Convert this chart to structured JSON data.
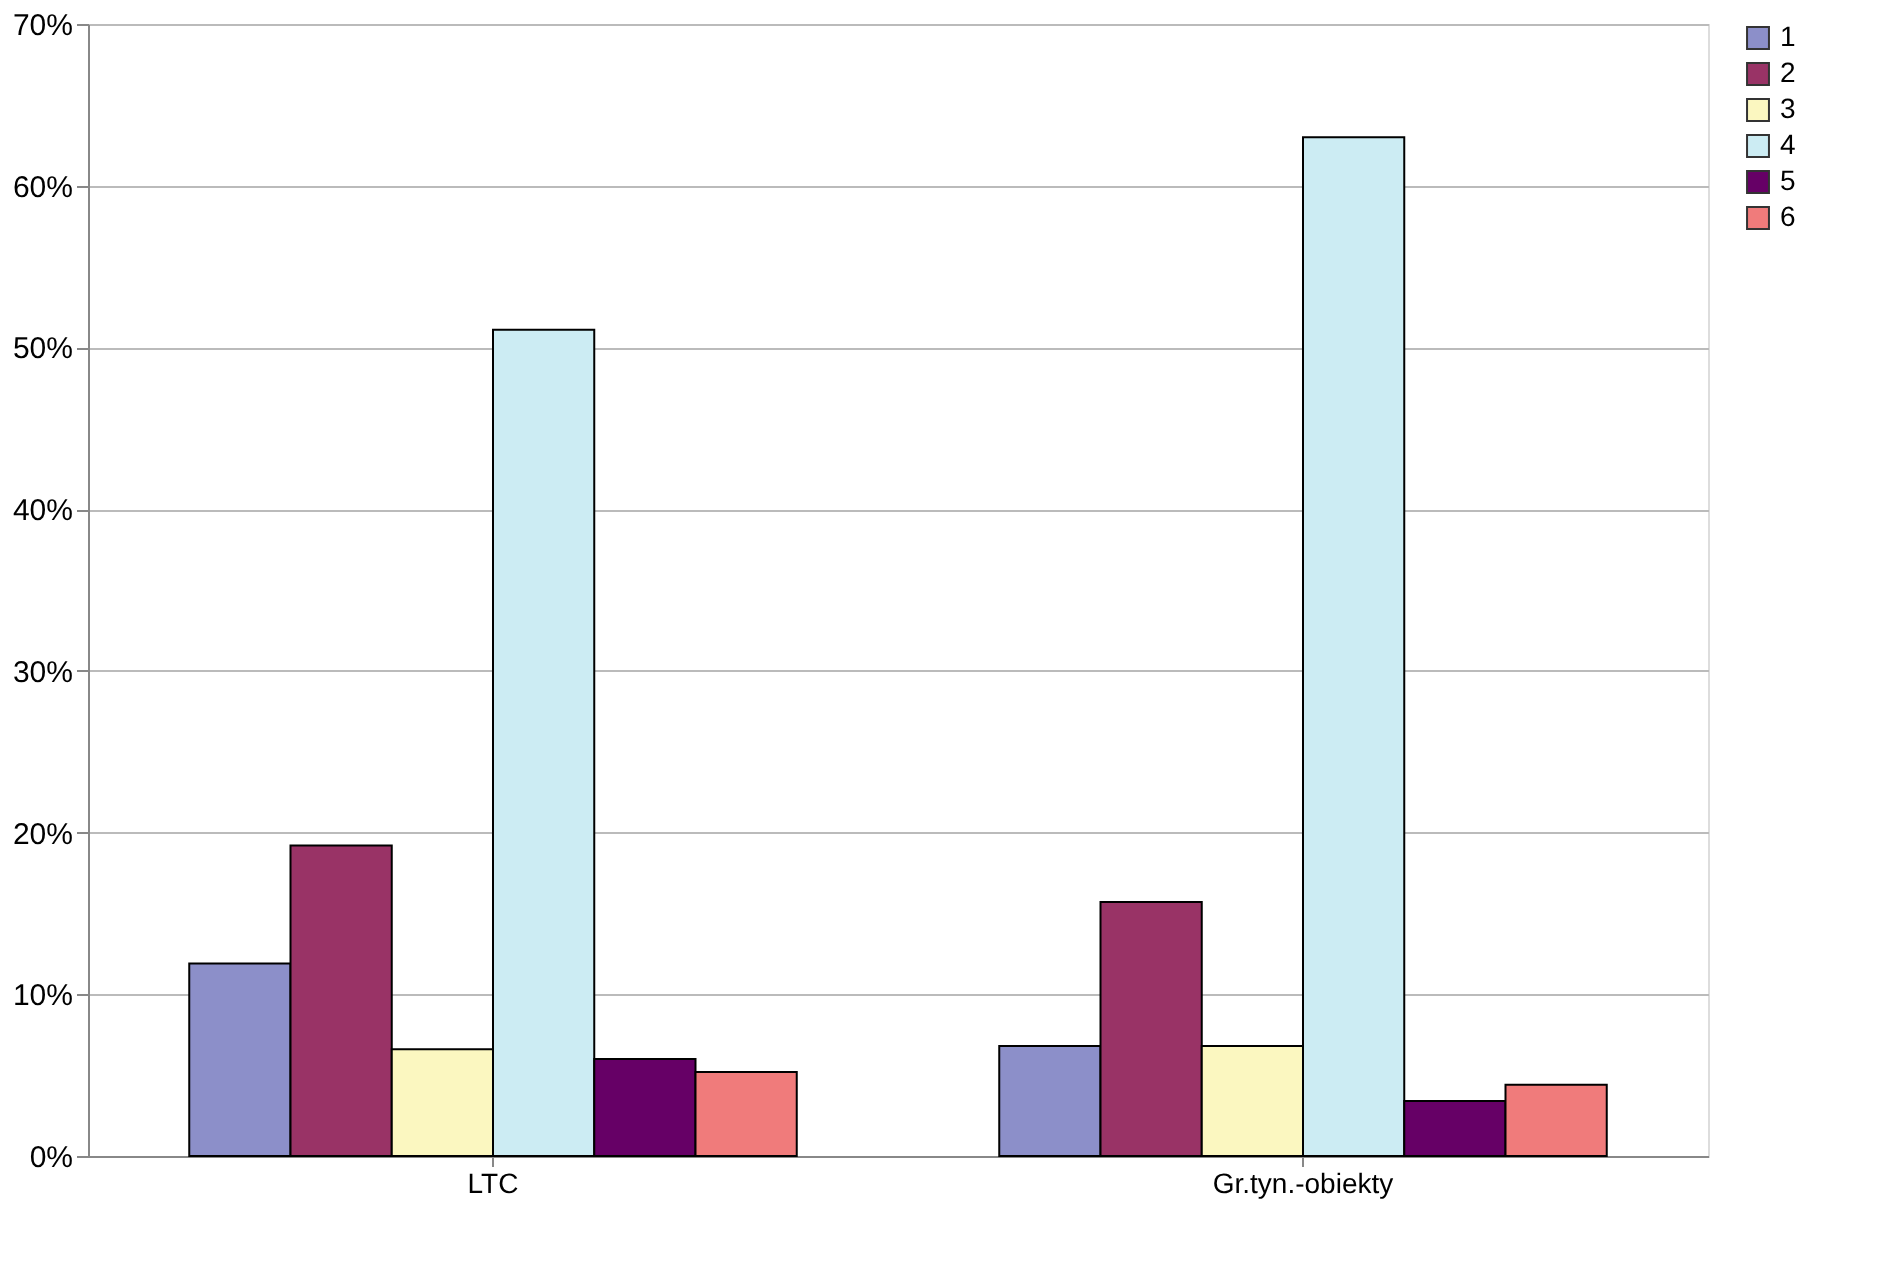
{
  "chart_data": {
    "type": "bar",
    "categories": [
      "LTC",
      "Gr.tyn.-obiekty"
    ],
    "series": [
      {
        "name": "1",
        "color": "#8c8fc9",
        "values": [
          11.9,
          6.8
        ]
      },
      {
        "name": "2",
        "color": "#993366",
        "values": [
          19.2,
          15.7
        ]
      },
      {
        "name": "3",
        "color": "#fbf7c0",
        "values": [
          6.6,
          6.8
        ]
      },
      {
        "name": "4",
        "color": "#ccecf3",
        "values": [
          51.1,
          63.0
        ]
      },
      {
        "name": "5",
        "color": "#660066",
        "values": [
          6.0,
          3.4
        ]
      },
      {
        "name": "6",
        "color": "#f07b7b",
        "values": [
          5.2,
          4.4
        ]
      }
    ],
    "ylim": [
      0,
      70
    ],
    "yticks": [
      {
        "value": 0,
        "label": "0%"
      },
      {
        "value": 10,
        "label": "10%"
      },
      {
        "value": 20,
        "label": "20%"
      },
      {
        "value": 30,
        "label": "30%"
      },
      {
        "value": 40,
        "label": "40%"
      },
      {
        "value": 50,
        "label": "50%"
      },
      {
        "value": 60,
        "label": "60%"
      },
      {
        "value": 70,
        "label": "70%"
      }
    ],
    "grid": "y",
    "legend": "right"
  }
}
